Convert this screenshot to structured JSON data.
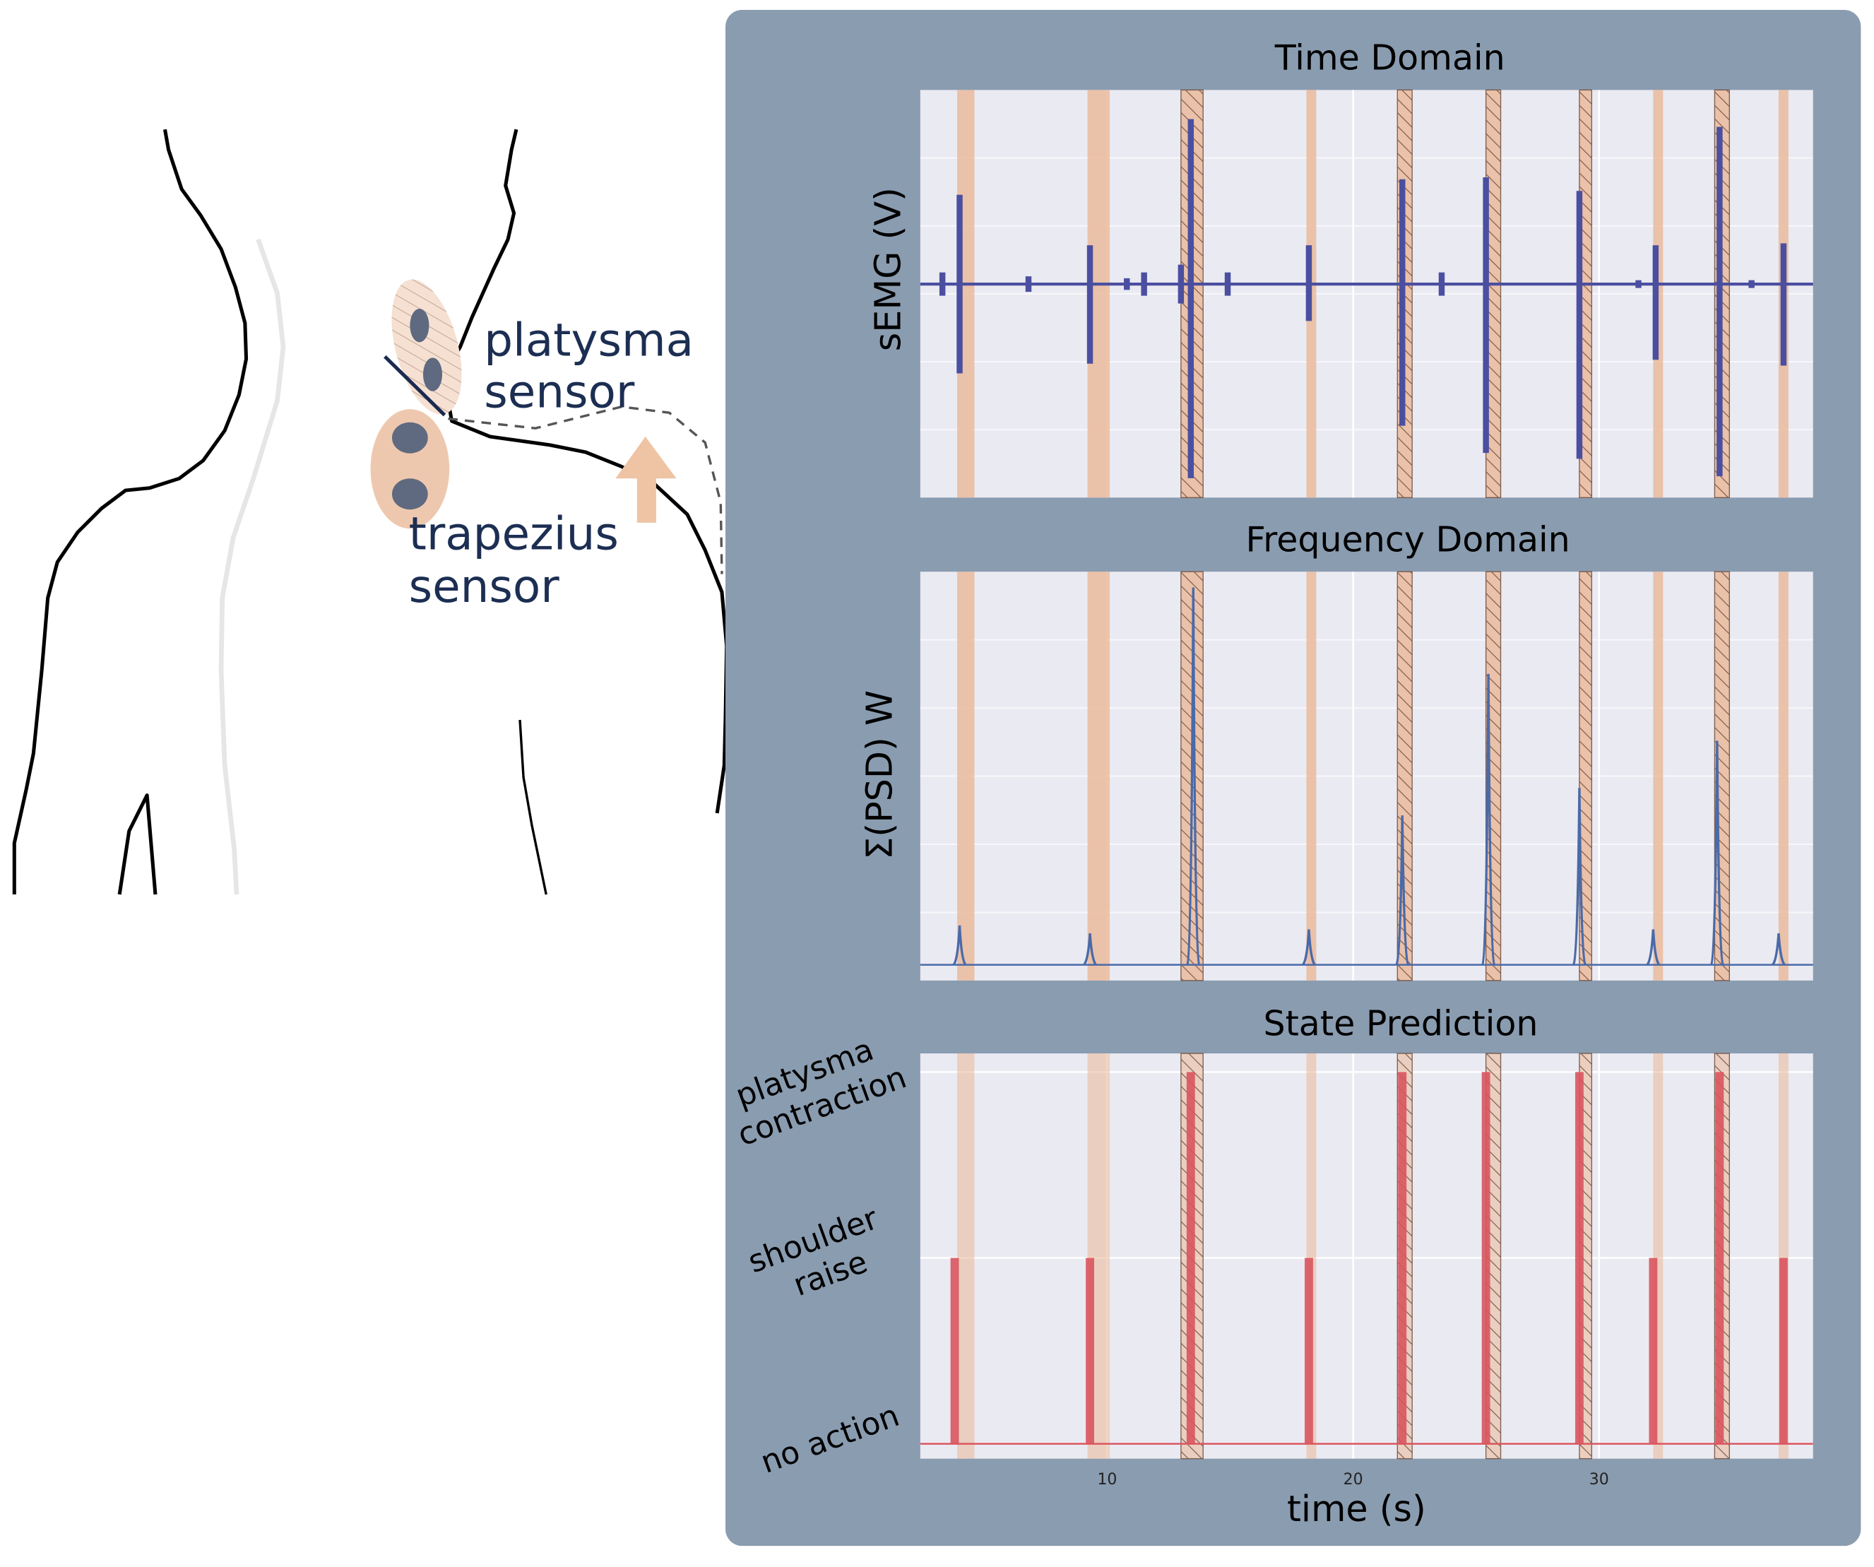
{
  "illustration": {
    "platysma_label": [
      "platysma",
      "sensor"
    ],
    "trapezius_label": [
      "trapezius",
      "sensor"
    ]
  },
  "chart_data": [
    {
      "type": "burst",
      "title": "Time Domain",
      "y_label": "sEMG (V)",
      "xlim": [
        2.4,
        38.7
      ],
      "ylim": [
        -1.1,
        1.0
      ],
      "color": "#4b4fa0",
      "bands": [
        {
          "x0": 3.9,
          "x1": 4.6,
          "hatch": false
        },
        {
          "x0": 9.2,
          "x1": 10.1,
          "hatch": false
        },
        {
          "x0": 13.0,
          "x1": 13.9,
          "hatch": true
        },
        {
          "x0": 18.1,
          "x1": 18.5,
          "hatch": false
        },
        {
          "x0": 21.8,
          "x1": 22.4,
          "hatch": true
        },
        {
          "x0": 25.4,
          "x1": 26.0,
          "hatch": true
        },
        {
          "x0": 29.2,
          "x1": 29.7,
          "hatch": true
        },
        {
          "x0": 32.2,
          "x1": 32.6,
          "hatch": false
        },
        {
          "x0": 34.7,
          "x1": 35.3,
          "hatch": true
        },
        {
          "x0": 37.3,
          "x1": 37.7,
          "hatch": false
        }
      ],
      "x": [
        3.3,
        4.0,
        6.8,
        9.3,
        10.8,
        11.5,
        13.0,
        13.4,
        14.9,
        18.2,
        22.0,
        23.6,
        25.4,
        29.2,
        31.6,
        32.3,
        34.9,
        36.2,
        37.5
      ],
      "upper": [
        0.06,
        0.46,
        0.04,
        0.2,
        0.03,
        0.06,
        0.1,
        0.85,
        0.06,
        0.2,
        0.54,
        0.06,
        0.55,
        0.48,
        0.02,
        0.2,
        0.81,
        0.02,
        0.21
      ],
      "lower": [
        -0.06,
        -0.46,
        -0.04,
        -0.41,
        -0.03,
        -0.06,
        -0.1,
        -1.0,
        -0.06,
        -0.19,
        -0.73,
        -0.06,
        -0.87,
        -0.9,
        -0.02,
        -0.39,
        -0.99,
        -0.02,
        -0.42
      ]
    },
    {
      "type": "peak",
      "title": "Frequency Domain",
      "y_label": "Σ(PSD) W",
      "xlim": [
        2.4,
        38.7
      ],
      "ylim": [
        -0.04,
        1.0
      ],
      "color": "#4a6aa8",
      "x": [
        4.0,
        9.3,
        13.5,
        18.2,
        22.0,
        25.5,
        29.2,
        32.2,
        34.8,
        37.3
      ],
      "values": [
        0.1,
        0.08,
        0.96,
        0.09,
        0.38,
        0.74,
        0.45,
        0.09,
        0.57,
        0.08
      ]
    },
    {
      "type": "state",
      "title": "State Prediction",
      "x_label": "time (s)",
      "xlim": [
        2.4,
        38.7
      ],
      "ylim": [
        -0.08,
        2.1
      ],
      "xticks": [
        10,
        20,
        30
      ],
      "yticks": [
        {
          "value": 0,
          "label": "no action"
        },
        {
          "value": 1,
          "label": "shoulder raise"
        },
        {
          "value": 2,
          "label": "platysma contraction"
        }
      ],
      "color": "#d9555f",
      "x": [
        3.8,
        9.3,
        13.4,
        18.2,
        22.0,
        25.4,
        29.2,
        32.2,
        34.9,
        37.5
      ],
      "values": [
        1,
        1,
        2,
        1,
        2,
        2,
        2,
        1,
        2,
        1
      ]
    }
  ]
}
